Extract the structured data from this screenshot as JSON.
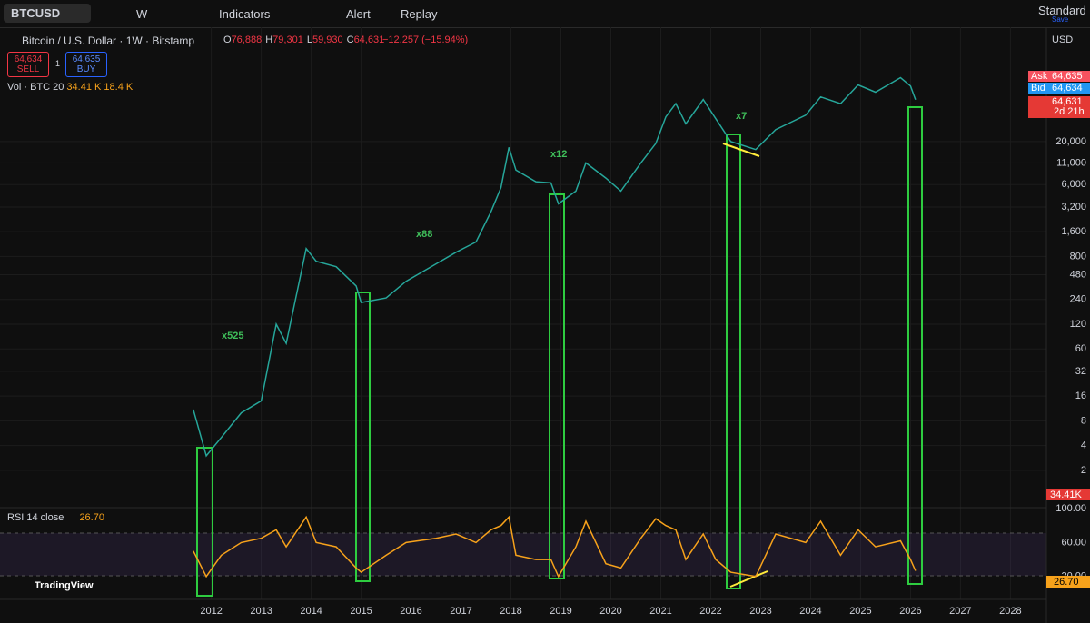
{
  "toolbar": {
    "symbol": "BTCUSD",
    "interval": "W",
    "indicators": "Indicators",
    "alert": "Alert",
    "replay": "Replay",
    "layout": "Standard",
    "save": "Save"
  },
  "legend": {
    "title": "Bitcoin / U.S. Dollar · 1W · Bitstamp",
    "ohlc": [
      {
        "label": "O",
        "value": "76,888"
      },
      {
        "label": "H",
        "value": "79,301"
      },
      {
        "label": "L",
        "value": "59,930"
      },
      {
        "label": "C",
        "value": "64,631"
      }
    ],
    "change": "−12,257 (−15.94%)"
  },
  "trade": {
    "sell_price": "64,634",
    "sell": "SELL",
    "spread": "1",
    "buy_price": "64,635",
    "buy": "BUY"
  },
  "volume_legend": {
    "name": "Vol · BTC 20",
    "v1": "34.41 K",
    "v2": "18.4 K"
  },
  "rsi_legend": {
    "name": "RSI 14 close",
    "value": "26.70"
  },
  "price_scale": {
    "currency": "USD",
    "ask_label": "Ask",
    "ask": "64,635",
    "bid_label": "Bid",
    "bid": "64,634",
    "last": "64,631",
    "countdown": "2d 21h",
    "volume": "34.41K",
    "rsi": "26.70"
  },
  "brand": "TradingView",
  "chart_data": [
    {
      "type": "line",
      "log_scale": true,
      "x": [
        2011.64,
        2011.9,
        2012.2,
        2012.6,
        2013.0,
        2013.3,
        2013.5,
        2013.9,
        2014.1,
        2014.5,
        2014.9,
        2015.0,
        2015.5,
        2015.9,
        2016.5,
        2016.9,
        2017.3,
        2017.6,
        2017.8,
        2017.96,
        2018.1,
        2018.5,
        2018.8,
        2018.95,
        2019.3,
        2019.5,
        2019.9,
        2020.2,
        2020.6,
        2020.9,
        2021.1,
        2021.3,
        2021.5,
        2021.85,
        2022.1,
        2022.4,
        2022.9,
        2023.3,
        2023.9,
        2024.2,
        2024.6,
        2024.95,
        2025.3,
        2025.8,
        2026.0,
        2026.1
      ],
      "series": [
        {
          "name": "BTCUSD",
          "color": "#26a69a",
          "values": [
            11,
            3,
            5,
            10,
            14,
            120,
            70,
            1000,
            700,
            600,
            350,
            220,
            250,
            400,
            650,
            900,
            1200,
            2800,
            5500,
            17000,
            9000,
            6500,
            6300,
            3500,
            5000,
            11000,
            7200,
            5000,
            11000,
            19000,
            40000,
            58000,
            33000,
            65000,
            38000,
            20000,
            16000,
            28000,
            42000,
            70000,
            58000,
            98000,
            80000,
            120000,
            95000,
            64631
          ]
        }
      ],
      "xlim": [
        2007.77,
        2028.72
      ],
      "xticks": [
        2012,
        2013,
        2014,
        2015,
        2016,
        2017,
        2018,
        2019,
        2020,
        2021,
        2022,
        2023,
        2024,
        2025,
        2026,
        2027,
        2028
      ],
      "ylim": [
        0.72,
        493000
      ],
      "yticks": [
        2,
        4,
        8,
        16,
        32,
        60,
        120,
        240,
        480,
        800,
        {
          "value": 1600,
          "label": "1,600"
        },
        {
          "value": 3200,
          "label": "3,200"
        },
        {
          "value": 6000,
          "label": "6,000"
        },
        {
          "value": 11000,
          "label": "11,000"
        },
        {
          "value": 20000,
          "label": "20,000"
        }
      ],
      "grid": true,
      "annotations": [
        "x525",
        "x88",
        "x12",
        "x7"
      ]
    },
    {
      "type": "line",
      "x": [
        2011.64,
        2011.9,
        2012.2,
        2012.6,
        2013.0,
        2013.3,
        2013.5,
        2013.9,
        2014.1,
        2014.5,
        2014.9,
        2015.0,
        2015.5,
        2015.9,
        2016.5,
        2016.9,
        2017.3,
        2017.6,
        2017.8,
        2017.96,
        2018.1,
        2018.5,
        2018.8,
        2018.95,
        2019.3,
        2019.5,
        2019.9,
        2020.2,
        2020.6,
        2020.9,
        2021.1,
        2021.3,
        2021.5,
        2021.85,
        2022.1,
        2022.4,
        2022.9,
        2023.3,
        2023.9,
        2024.2,
        2024.6,
        2024.95,
        2025.3,
        2025.8,
        2026.0,
        2026.1
      ],
      "series": [
        {
          "name": "RSI",
          "color": "#f7a21b",
          "values": [
            50,
            20,
            45,
            60,
            65,
            75,
            55,
            90,
            60,
            55,
            30,
            25,
            45,
            60,
            65,
            70,
            60,
            75,
            80,
            90,
            45,
            40,
            40,
            20,
            55,
            85,
            35,
            30,
            65,
            88,
            80,
            75,
            40,
            70,
            40,
            25,
            20,
            70,
            60,
            85,
            45,
            75,
            55,
            62,
            40,
            26.7
          ]
        }
      ],
      "xlim": [
        2007.77,
        2028.72
      ],
      "ylim": [
        -7,
        100
      ],
      "yticks": [
        {
          "value": 100,
          "label": "100.00"
        },
        {
          "value": 60,
          "label": "60.00"
        },
        {
          "value": 20,
          "label": "20.00"
        }
      ]
    }
  ]
}
